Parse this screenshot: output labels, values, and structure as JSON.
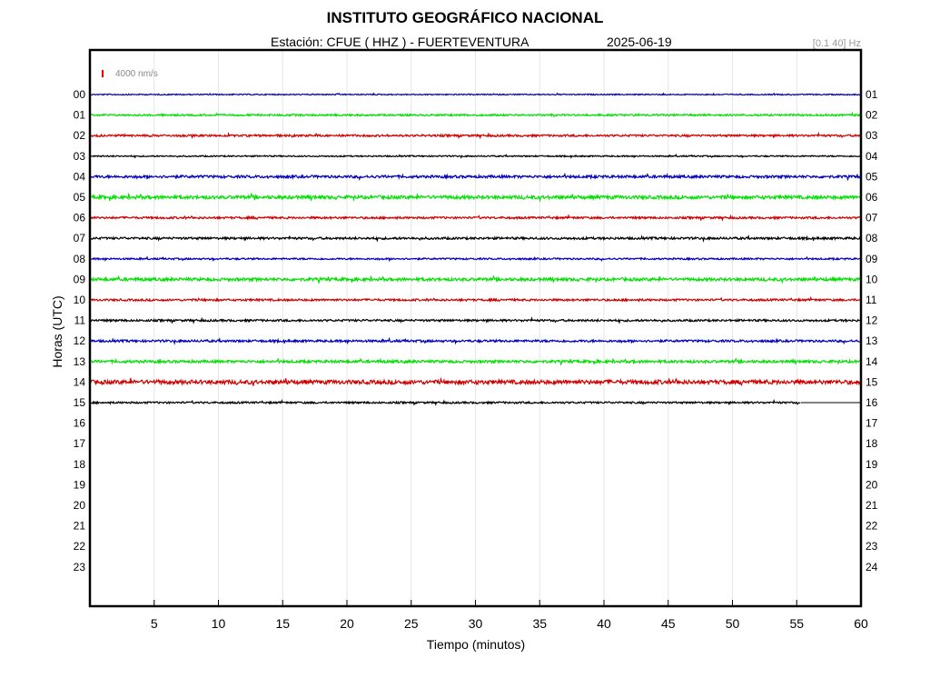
{
  "header": {
    "title": "INSTITUTO GEOGRÁFICO NACIONAL",
    "station_label": "Estación:  CFUE ( HHZ ) - FUERTEVENTURA",
    "date": "2025-06-19",
    "filter": "[0.1 40] Hz",
    "scale_label": "4000 nm/s"
  },
  "colors": {
    "cycle": [
      "#0000c0",
      "#00e000",
      "#d00000",
      "#000000"
    ],
    "scale_bar": "#e00000"
  },
  "chart_data": {
    "type": "line",
    "title": "INSTITUTO GEOGRÁFICO NACIONAL",
    "xlabel": "Tiempo (minutos)",
    "ylabel": "Horas (UTC)",
    "xlim": [
      0,
      60
    ],
    "x_ticks": [
      5,
      10,
      15,
      20,
      25,
      30,
      35,
      40,
      45,
      50,
      55,
      60
    ],
    "y_ticks_left": [
      "00",
      "01",
      "02",
      "03",
      "04",
      "05",
      "06",
      "07",
      "08",
      "09",
      "10",
      "11",
      "12",
      "13",
      "14",
      "15",
      "16",
      "17",
      "18",
      "19",
      "20",
      "21",
      "22",
      "23"
    ],
    "y_ticks_right": [
      "01",
      "02",
      "03",
      "04",
      "05",
      "06",
      "07",
      "08",
      "09",
      "10",
      "11",
      "12",
      "13",
      "14",
      "15",
      "16",
      "17",
      "18",
      "19",
      "20",
      "21",
      "22",
      "23",
      "24"
    ],
    "grid": true,
    "traces": [
      {
        "hour": 0,
        "start": 0,
        "end": 60,
        "amplitude": 0.6
      },
      {
        "hour": 1,
        "start": 0,
        "end": 60,
        "amplitude": 1.0
      },
      {
        "hour": 2,
        "start": 0,
        "end": 60,
        "amplitude": 1.1
      },
      {
        "hour": 3,
        "start": 0,
        "end": 60,
        "amplitude": 0.7
      },
      {
        "hour": 4,
        "start": 0,
        "end": 60,
        "amplitude": 1.4
      },
      {
        "hour": 5,
        "start": 0,
        "end": 60,
        "amplitude": 1.8
      },
      {
        "hour": 6,
        "start": 0,
        "end": 60,
        "amplitude": 1.1
      },
      {
        "hour": 7,
        "start": 0,
        "end": 60,
        "amplitude": 1.2
      },
      {
        "hour": 8,
        "start": 0,
        "end": 60,
        "amplitude": 0.9
      },
      {
        "hour": 9,
        "start": 0,
        "end": 60,
        "amplitude": 1.6
      },
      {
        "hour": 10,
        "start": 0,
        "end": 60,
        "amplitude": 1.1
      },
      {
        "hour": 11,
        "start": 0,
        "end": 60,
        "amplitude": 1.1
      },
      {
        "hour": 12,
        "start": 0,
        "end": 60,
        "amplitude": 1.2
      },
      {
        "hour": 13,
        "start": 0,
        "end": 60,
        "amplitude": 1.4
      },
      {
        "hour": 14,
        "start": 0,
        "end": 60,
        "amplitude": 2.2
      },
      {
        "hour": 15,
        "start": 0,
        "end": 55.3,
        "amplitude": 1.0
      }
    ]
  }
}
